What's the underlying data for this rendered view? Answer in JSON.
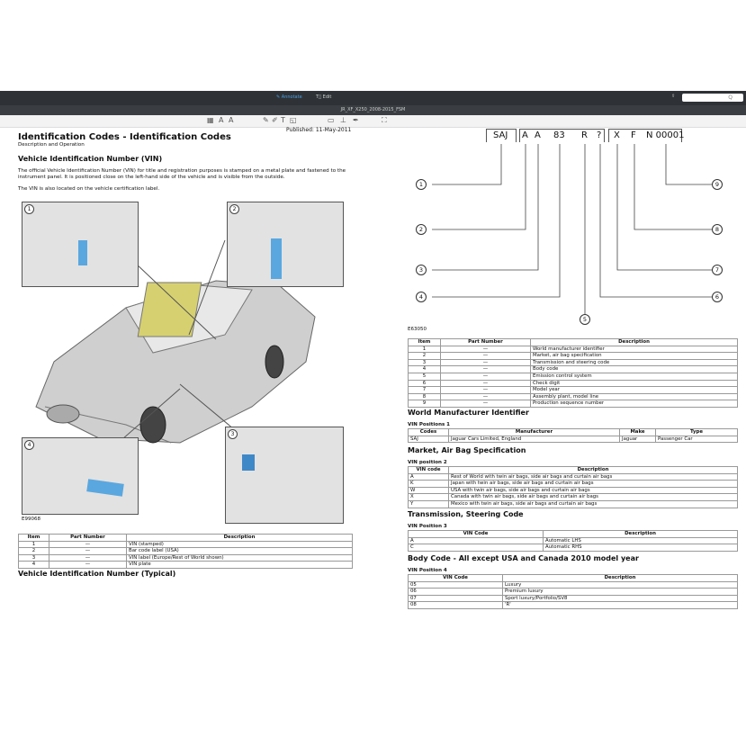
{
  "app": {
    "mode_annotate": "Annotate",
    "mode_edit": "Edit",
    "doc_title": "JR_XF_X250_2008-2015_FSM",
    "search_placeholder": "Q",
    "accent": "#4a9ee8"
  },
  "page": {
    "published": "Published: 11-May-2011",
    "title": "Identification Codes - Identification Codes",
    "subtitle": "Description and Operation",
    "section1": "Vehicle Identification Number (VIN)",
    "para1": "The official Vehicle Identification Number (VIN) for title and registration purposes is stamped on a metal plate and fastened to the instrument panel. It is positioned close on the left-hand side of the vehicle and is visible from the outside.",
    "para2": "The VIN is also located on the vehicle certification label.",
    "figure1_label": "E99068",
    "insets": [
      "1",
      "2",
      "3",
      "4"
    ],
    "table1": {
      "headers": [
        "Item",
        "Part Number",
        "Description"
      ],
      "rows": [
        [
          "1",
          "—",
          "VIN (stamped)"
        ],
        [
          "2",
          "—",
          "Bar code label (USA)"
        ],
        [
          "3",
          "—",
          "VIN label (Europe/Rest of World shown)"
        ],
        [
          "4",
          "—",
          "VIN plate"
        ]
      ]
    },
    "section2": "Vehicle Identification Number (Typical)"
  },
  "vin": {
    "chars": [
      "SAJ",
      "A",
      "A",
      "83",
      "R",
      "?",
      "X",
      "F",
      "N 00001"
    ],
    "callouts": [
      "1",
      "2",
      "3",
      "4",
      "5",
      "6",
      "7",
      "8",
      "9"
    ],
    "figure_label": "E63050"
  },
  "table2": {
    "headers": [
      "Item",
      "Part Number",
      "Description"
    ],
    "rows": [
      [
        "1",
        "—",
        "World manufacturer identifier"
      ],
      [
        "2",
        "—",
        "Market, air bag specification"
      ],
      [
        "3",
        "—",
        "Transmission and steering code"
      ],
      [
        "4",
        "—",
        "Body code"
      ],
      [
        "5",
        "—",
        "Emission control system"
      ],
      [
        "6",
        "—",
        "Check digit"
      ],
      [
        "7",
        "—",
        "Model year"
      ],
      [
        "8",
        "—",
        "Assembly plant, model line"
      ],
      [
        "9",
        "—",
        "Production sequence number"
      ]
    ]
  },
  "wmi": {
    "heading": "World Manufacturer Identifier",
    "caption": "VIN Positions 1",
    "headers": [
      "Codes",
      "Manufacturer",
      "Make",
      "Type"
    ],
    "rows": [
      [
        "SAJ",
        "Jaguar Cars Limited, England",
        "Jaguar",
        "Passenger Car"
      ]
    ]
  },
  "market": {
    "heading": "Market, Air Bag Specification",
    "caption": "VIN position 2",
    "headers": [
      "VIN code",
      "Description"
    ],
    "rows": [
      [
        "A",
        "Rest of World with twin air bags, side air bags and curtain air bags"
      ],
      [
        "K",
        "Japan with twin air bags, side air bags and curtain air bags"
      ],
      [
        "W",
        "USA with twin air bags, side air bags and curtain air bags"
      ],
      [
        "X",
        "Canada with twin air bags, side air bags and curtain air bags"
      ],
      [
        "Y",
        "Mexico with twin air bags, side air bags and curtain air bags"
      ]
    ]
  },
  "trans": {
    "heading": "Transmission, Steering Code",
    "caption": "VIN Position 3",
    "headers": [
      "VIN Code",
      "Description"
    ],
    "rows": [
      [
        "A",
        "Automatic LHS"
      ],
      [
        "C",
        "Automatic RHS"
      ]
    ]
  },
  "body": {
    "heading": "Body Code - All except USA and Canada 2010 model year",
    "caption": "VIN Position 4",
    "headers": [
      "VIN Code",
      "Description"
    ],
    "rows": [
      [
        "05",
        "Luxury"
      ],
      [
        "06",
        "Premium luxury"
      ],
      [
        "07",
        "Sport luxury/Portfolio/SV8"
      ],
      [
        "08",
        "'R'"
      ]
    ]
  }
}
